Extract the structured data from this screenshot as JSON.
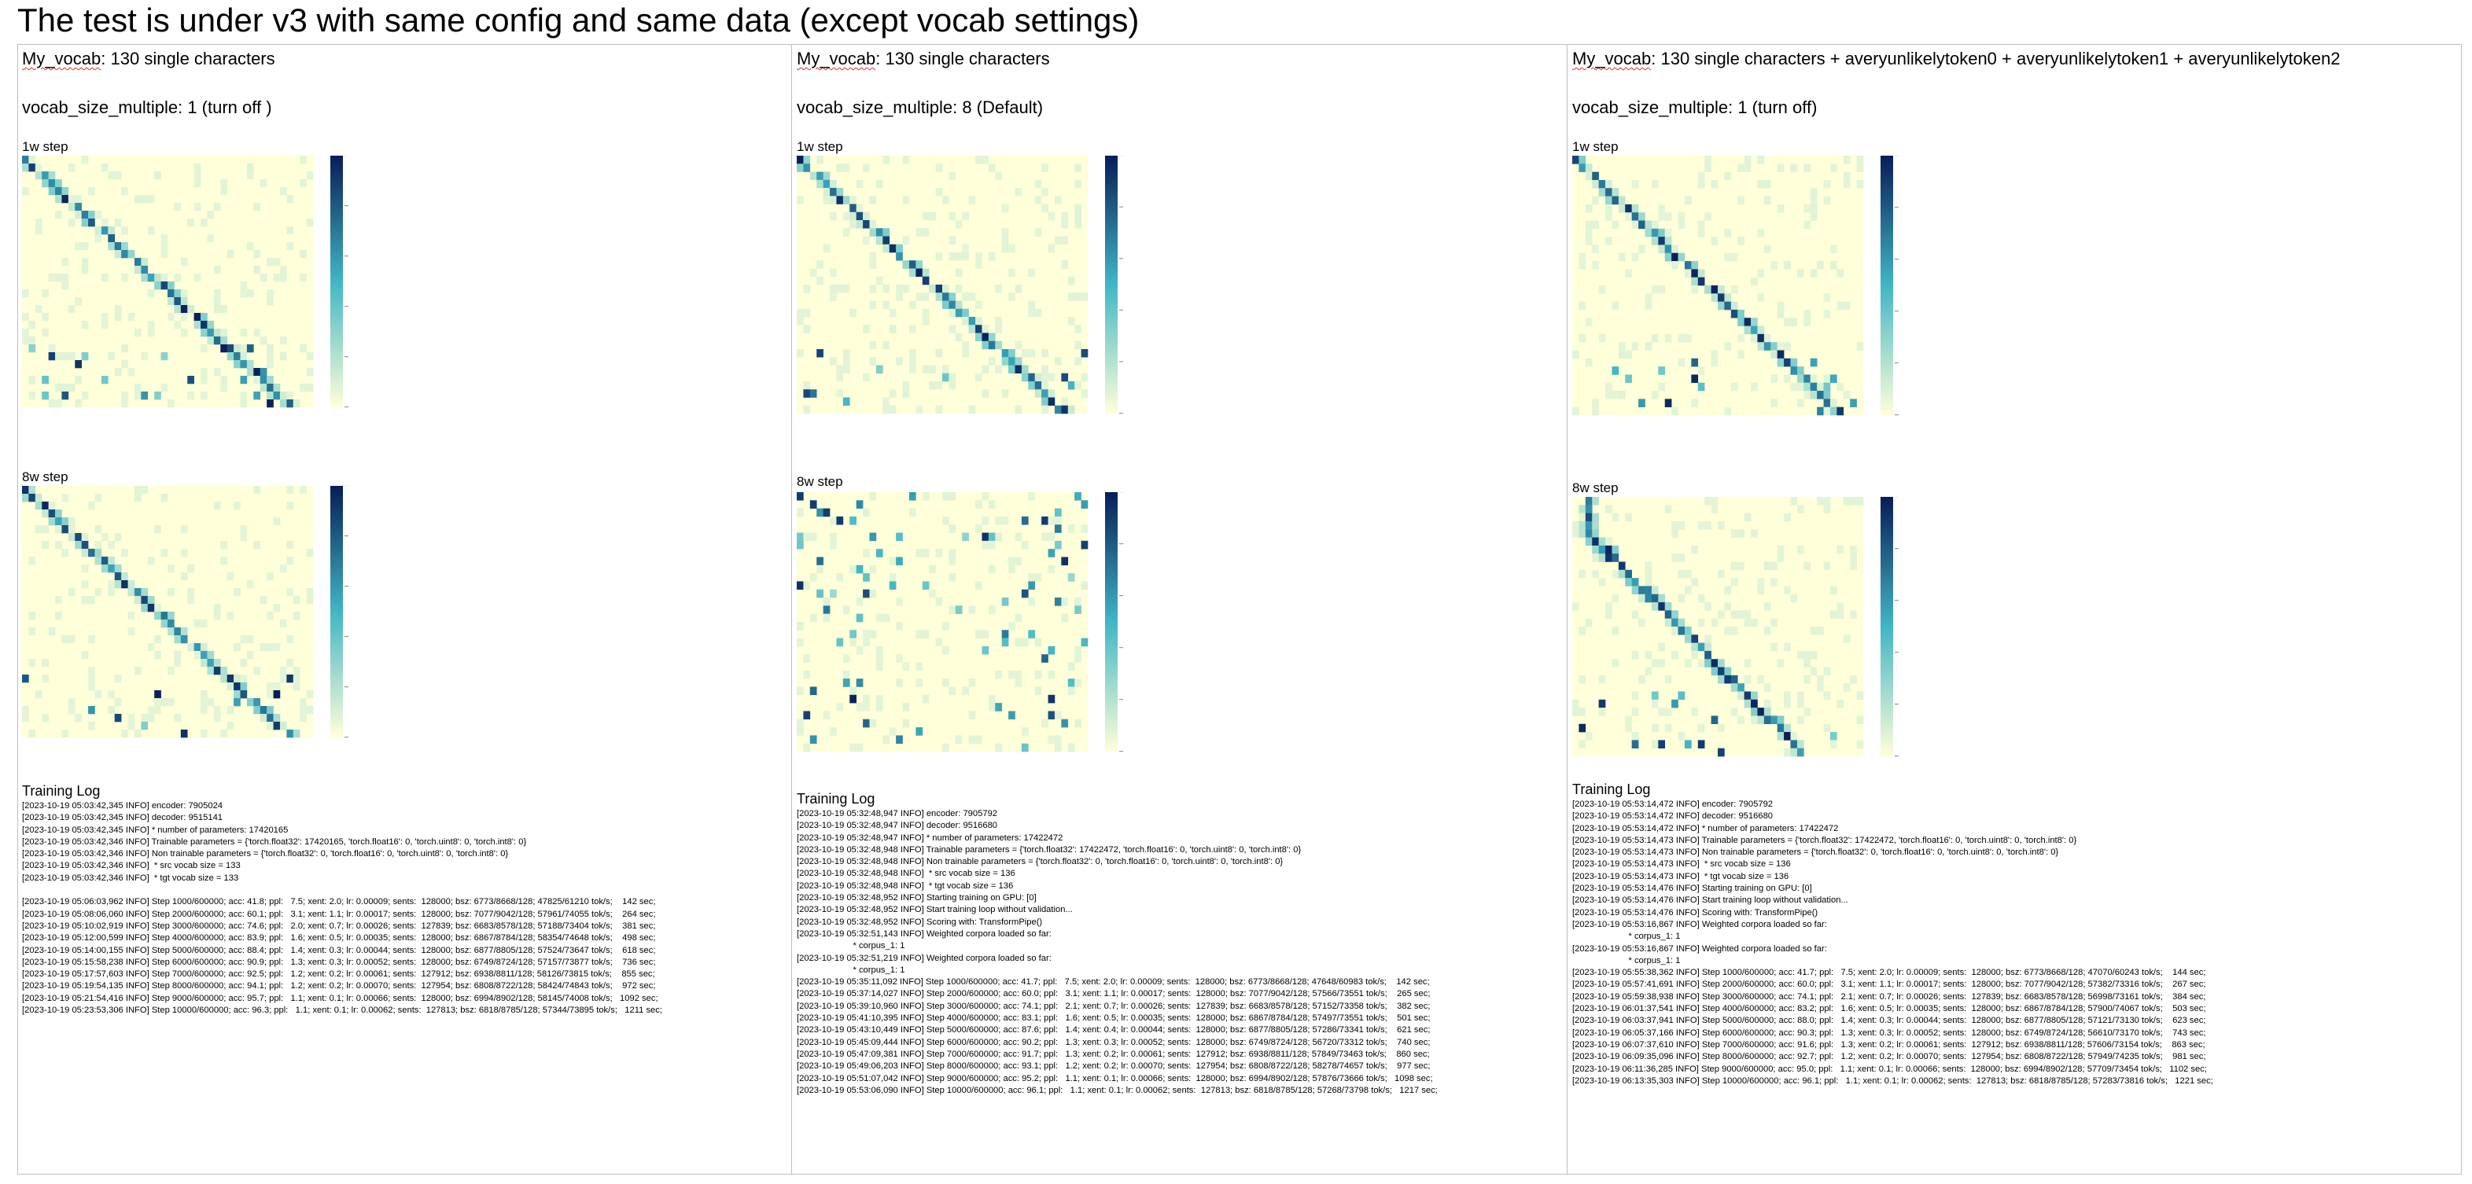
{
  "title": "The test is under  v3 with same config and same data (except vocab settings)",
  "colors": {
    "low": "#ffffd9",
    "mid": "#41b6c4",
    "high": "#081d58",
    "border": "#bfbfbf",
    "squiggle": "#e03030"
  },
  "columns": [
    {
      "vocab_name": "My_vocab",
      "vocab_desc": ": 130 single characters",
      "multiple": "vocab_size_multiple: 1 (turn off )",
      "step1": "1w step",
      "step2": "8w step",
      "log_title": "Training Log",
      "heat1": {
        "pattern": "diag",
        "seed": 11
      },
      "heat2": {
        "pattern": "diag",
        "seed": 23
      },
      "log": [
        "[2023-10-19 05:03:42,345 INFO] encoder: 7905024",
        "[2023-10-19 05:03:42,345 INFO] decoder: 9515141",
        "[2023-10-19 05:03:42,345 INFO] * number of parameters: 17420165",
        "[2023-10-19 05:03:42,346 INFO] Trainable parameters = {'torch.float32': 17420165, 'torch.float16': 0, 'torch.uint8': 0, 'torch.int8': 0}",
        "[2023-10-19 05:03:42,346 INFO] Non trainable parameters = {'torch.float32': 0, 'torch.float16': 0, 'torch.uint8': 0, 'torch.int8': 0}",
        "[2023-10-19 05:03:42,346 INFO]  * src vocab size = 133",
        "[2023-10-19 05:03:42,346 INFO]  * tgt vocab size = 133",
        "",
        "[2023-10-19 05:06:03,962 INFO] Step 1000/600000; acc: 41.8; ppl:   7.5; xent: 2.0; lr: 0.00009; sents:  128000; bsz: 6773/8668/128; 47825/61210 tok/s;    142 sec;",
        "[2023-10-19 05:08:06,060 INFO] Step 2000/600000; acc: 60.1; ppl:   3.1; xent: 1.1; lr: 0.00017; sents:  128000; bsz: 7077/9042/128; 57961/74055 tok/s;    264 sec;",
        "[2023-10-19 05:10:02,919 INFO] Step 3000/600000; acc: 74.6; ppl:   2.0; xent: 0.7; lr: 0.00026; sents:  127839; bsz: 6683/8578/128; 57188/73404 tok/s;    381 sec;",
        "[2023-10-19 05:12:00,599 INFO] Step 4000/600000; acc: 83.9; ppl:   1.6; xent: 0.5; lr: 0.00035; sents:  128000; bsz: 6867/8784/128; 58354/74648 tok/s;    498 sec;",
        "[2023-10-19 05:14:00,155 INFO] Step 5000/600000; acc: 88.4; ppl:   1.4; xent: 0.3; lr: 0.00044; sents:  128000; bsz: 6877/8805/128; 57524/73647 tok/s;    618 sec;",
        "[2023-10-19 05:15:58,238 INFO] Step 6000/600000; acc: 90.9; ppl:   1.3; xent: 0.3; lr: 0.00052; sents:  128000; bsz: 6749/8724/128; 57157/73877 tok/s;    736 sec;",
        "[2023-10-19 05:17:57,603 INFO] Step 7000/600000; acc: 92.5; ppl:   1.2; xent: 0.2; lr: 0.00061; sents:  127912; bsz: 6938/8811/128; 58126/73815 tok/s;    855 sec;",
        "[2023-10-19 05:19:54,135 INFO] Step 8000/600000; acc: 94.1; ppl:   1.2; xent: 0.2; lr: 0.00070; sents:  127954; bsz: 6808/8722/128; 58424/74843 tok/s;    972 sec;",
        "[2023-10-19 05:21:54,416 INFO] Step 9000/600000; acc: 95.7; ppl:   1.1; xent: 0.1; lr: 0.00066; sents:  128000; bsz: 6994/8902/128; 58145/74008 tok/s;   1092 sec;",
        "[2023-10-19 05:23:53,306 INFO] Step 10000/600000; acc: 96.3; ppl:   1.1; xent: 0.1; lr: 0.00062; sents:  127813; bsz: 6818/8785/128; 57344/73895 tok/s;   1211 sec;"
      ]
    },
    {
      "vocab_name": "My_vocab",
      "vocab_desc": ": 130 single characters",
      "multiple": "vocab_size_multiple: 8 (Default)",
      "step1": "1w step",
      "step2": "8w step",
      "log_title": "Training Log",
      "heat1": {
        "pattern": "diag",
        "seed": 37
      },
      "heat2": {
        "pattern": "scatter",
        "seed": 41
      },
      "log": [
        "[2023-10-19 05:32:48,947 INFO] encoder: 7905792",
        "[2023-10-19 05:32:48,947 INFO] decoder: 9516680",
        "[2023-10-19 05:32:48,947 INFO] * number of parameters: 17422472",
        "[2023-10-19 05:32:48,948 INFO] Trainable parameters = {'torch.float32': 17422472, 'torch.float16': 0, 'torch.uint8': 0, 'torch.int8': 0}",
        "[2023-10-19 05:32:48,948 INFO] Non trainable parameters = {'torch.float32': 0, 'torch.float16': 0, 'torch.uint8': 0, 'torch.int8': 0}",
        "[2023-10-19 05:32:48,948 INFO]  * src vocab size = 136",
        "[2023-10-19 05:32:48,948 INFO]  * tgt vocab size = 136",
        "[2023-10-19 05:32:48,952 INFO] Starting training on GPU: [0]",
        "[2023-10-19 05:32:48,952 INFO] Start training loop without validation...",
        "[2023-10-19 05:32:48,952 INFO] Scoring with: TransformPipe()",
        "[2023-10-19 05:32:51,143 INFO] Weighted corpora loaded so far:",
        "                       * corpus_1: 1",
        "[2023-10-19 05:32:51,219 INFO] Weighted corpora loaded so far:",
        "                       * corpus_1: 1",
        "[2023-10-19 05:35:11,092 INFO] Step 1000/600000; acc: 41.7; ppl:   7.5; xent: 2.0; lr: 0.00009; sents:  128000; bsz: 6773/8668/128; 47648/60983 tok/s;    142 sec;",
        "[2023-10-19 05:37:14,027 INFO] Step 2000/600000; acc: 60.0; ppl:   3.1; xent: 1.1; lr: 0.00017; sents:  128000; bsz: 7077/9042/128; 57566/73551 tok/s;    265 sec;",
        "[2023-10-19 05:39:10,960 INFO] Step 3000/600000; acc: 74.1; ppl:   2.1; xent: 0.7; lr: 0.00026; sents:  127839; bsz: 6683/8578/128; 57152/73358 tok/s;    382 sec;",
        "[2023-10-19 05:41:10,395 INFO] Step 4000/600000; acc: 83.1; ppl:   1.6; xent: 0.5; lr: 0.00035; sents:  128000; bsz: 6867/8784/128; 57497/73551 tok/s;    501 sec;",
        "[2023-10-19 05:43:10,449 INFO] Step 5000/600000; acc: 87.6; ppl:   1.4; xent: 0.4; lr: 0.00044; sents:  128000; bsz: 6877/8805/128; 57286/73341 tok/s;    621 sec;",
        "[2023-10-19 05:45:09,444 INFO] Step 6000/600000; acc: 90.2; ppl:   1.3; xent: 0.3; lr: 0.00052; sents:  128000; bsz: 6749/8724/128; 56720/73312 tok/s;    740 sec;",
        "[2023-10-19 05:47:09,381 INFO] Step 7000/600000; acc: 91.7; ppl:   1.3; xent: 0.2; lr: 0.00061; sents:  127912; bsz: 6938/8811/128; 57849/73463 tok/s;    860 sec;",
        "[2023-10-19 05:49:06,203 INFO] Step 8000/600000; acc: 93.1; ppl:   1.2; xent: 0.2; lr: 0.00070; sents:  127954; bsz: 6808/8722/128; 58278/74657 tok/s;    977 sec;",
        "[2023-10-19 05:51:07,042 INFO] Step 9000/600000; acc: 95.2; ppl:   1.1; xent: 0.1; lr: 0.00066; sents:  128000; bsz: 6994/8902/128; 57876/73666 tok/s;   1098 sec;",
        "[2023-10-19 05:53:06,090 INFO] Step 10000/600000; acc: 96.1; ppl:   1.1; xent: 0.1; lr: 0.00062; sents:  127813; bsz: 6818/8785/128; 57268/73798 tok/s;   1217 sec;"
      ]
    },
    {
      "vocab_name": "My_vocab",
      "vocab_desc": ": 130 single characters + averyunlikelytoken0 + averyunlikelytoken1 + averyunlikelytoken2",
      "multiple": "vocab_size_multiple: 1 (turn off)",
      "step1": "1w step",
      "step2": "8w step",
      "log_title": "Training Log",
      "heat1": {
        "pattern": "diag",
        "seed": 53
      },
      "heat2": {
        "pattern": "diaglate",
        "seed": 67
      },
      "log": [
        "[2023-10-19 05:53:14,472 INFO] encoder: 7905792",
        "[2023-10-19 05:53:14,472 INFO] decoder: 9516680",
        "[2023-10-19 05:53:14,472 INFO] * number of parameters: 17422472",
        "[2023-10-19 05:53:14,473 INFO] Trainable parameters = {'torch.float32': 17422472, 'torch.float16': 0, 'torch.uint8': 0, 'torch.int8': 0}",
        "[2023-10-19 05:53:14,473 INFO] Non trainable parameters = {'torch.float32': 0, 'torch.float16': 0, 'torch.uint8': 0, 'torch.int8': 0}",
        "[2023-10-19 05:53:14,473 INFO]  * src vocab size = 136",
        "[2023-10-19 05:53:14,473 INFO]  * tgt vocab size = 136",
        "[2023-10-19 05:53:14,476 INFO] Starting training on GPU: [0]",
        "[2023-10-19 05:53:14,476 INFO] Start training loop without validation...",
        "[2023-10-19 05:53:14,476 INFO] Scoring with: TransformPipe()",
        "[2023-10-19 05:53:16,867 INFO] Weighted corpora loaded so far:",
        "                       * corpus_1: 1",
        "[2023-10-19 05:53:16,867 INFO] Weighted corpora loaded so far:",
        "                       * corpus_1: 1",
        "[2023-10-19 05:55:38,362 INFO] Step 1000/600000; acc: 41.7; ppl:   7.5; xent: 2.0; lr: 0.00009; sents:  128000; bsz: 6773/8668/128; 47070/60243 tok/s;    144 sec;",
        "[2023-10-19 05:57:41,691 INFO] Step 2000/600000; acc: 60.0; ppl:   3.1; xent: 1.1; lr: 0.00017; sents:  128000; bsz: 7077/9042/128; 57382/73316 tok/s;    267 sec;",
        "[2023-10-19 05:59:38,938 INFO] Step 3000/600000; acc: 74.1; ppl:   2.1; xent: 0.7; lr: 0.00026; sents:  127839; bsz: 6683/8578/128; 56998/73161 tok/s;    384 sec;",
        "[2023-10-19 06:01:37,541 INFO] Step 4000/600000; acc: 83.2; ppl:   1.6; xent: 0.5; lr: 0.00035; sents:  128000; bsz: 6867/8784/128; 57900/74067 tok/s;    503 sec;",
        "[2023-10-19 06:03:37,941 INFO] Step 5000/600000; acc: 88.0; ppl:   1.4; xent: 0.3; lr: 0.00044; sents:  128000; bsz: 6877/8805/128; 57121/73130 tok/s;    623 sec;",
        "[2023-10-19 06:05:37,166 INFO] Step 6000/600000; acc: 90.3; ppl:   1.3; xent: 0.3; lr: 0.00052; sents:  128000; bsz: 6749/8724/128; 56610/73170 tok/s;    743 sec;",
        "[2023-10-19 06:07:37,610 INFO] Step 7000/600000; acc: 91.6; ppl:   1.3; xent: 0.2; lr: 0.00061; sents:  127912; bsz: 6938/8811/128; 57606/73154 tok/s;    863 sec;",
        "[2023-10-19 06:09:35,096 INFO] Step 8000/600000; acc: 92.7; ppl:   1.2; xent: 0.2; lr: 0.00070; sents:  127954; bsz: 6808/8722/128; 57949/74235 tok/s;    981 sec;",
        "[2023-10-19 06:11:36,285 INFO] Step 9000/600000; acc: 95.0; ppl:   1.1; xent: 0.1; lr: 0.00066; sents:  128000; bsz: 6994/8902/128; 57709/73454 tok/s;   1102 sec;",
        "[2023-10-19 06:13:35,303 INFO] Step 10000/600000; acc: 96.1; ppl:   1.1; xent: 0.1; lr: 0.00062; sents:  127813; bsz: 6818/8785/128; 57283/73816 tok/s;   1221 sec;"
      ]
    }
  ]
}
